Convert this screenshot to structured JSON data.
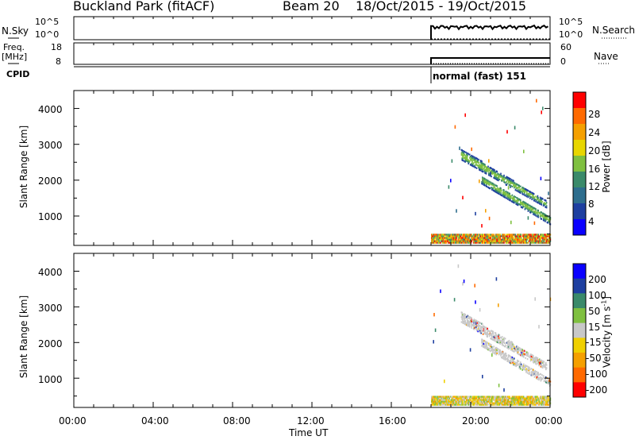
{
  "header": {
    "station": "Buckland Park (fitACF)",
    "beam": "Beam 20",
    "dates": "18/Oct/2015 - 19/Oct/2015"
  },
  "summary_panels": {
    "nsky_label": "N.Sky",
    "nsky_ticks": [
      "10^5",
      "10^0"
    ],
    "nsearch_label": "N.Search",
    "nsearch_ticks": [
      "10^5",
      "10^0"
    ],
    "freq_label": "Freq.",
    "freq_unit": "[MHz]",
    "freq_ticks": [
      "18",
      "8"
    ],
    "nave_label": "Nave",
    "nave_ticks": [
      "60",
      "0"
    ],
    "cpid_label": "CPID",
    "cpid_value": "normal (fast) 151"
  },
  "colors": {
    "power_scale": [
      "#0a00ff",
      "#1e3fa0",
      "#2e6e8e",
      "#3a8a6a",
      "#7fc040",
      "#e8d600",
      "#f5a000",
      "#ff6a00",
      "#ff0000"
    ],
    "velocity_scale": [
      "#ff0000",
      "#ff6a00",
      "#f5a000",
      "#f0d000",
      "#c8c8c8",
      "#7fc040",
      "#3a8a6a",
      "#1e3fa0",
      "#0a00ff"
    ]
  },
  "chart_data": [
    {
      "type": "heatmap",
      "title": "",
      "quantity": "Power",
      "xlabel": "",
      "ylabel": "Slant Range [km]",
      "ylim": [
        180,
        4500
      ],
      "yticks": [
        "4000",
        "3000",
        "2000",
        "1000"
      ],
      "colorbar_label": "Power [dB]",
      "colorbar_ticks": [
        "28",
        "24",
        "20",
        "16",
        "12",
        "8",
        "4"
      ],
      "data_time_range_ut": [
        "18:00",
        "24:00"
      ],
      "features": [
        {
          "name": "near-range scatter",
          "range_km": [
            250,
            500
          ],
          "time_ut": [
            18.0,
            24.0
          ]
        },
        {
          "name": "upper band",
          "range_km_start": 2700,
          "range_km_end": 1300,
          "time_ut": [
            19.5,
            23.8
          ]
        },
        {
          "name": "lower band",
          "range_km_start": 2000,
          "range_km_end": 850,
          "time_ut": [
            20.5,
            24.0
          ]
        }
      ]
    },
    {
      "type": "heatmap",
      "title": "",
      "quantity": "Velocity",
      "xlabel": "Time UT",
      "ylabel": "Slant Range [km]",
      "ylim": [
        180,
        4500
      ],
      "yticks": [
        "4000",
        "3000",
        "2000",
        "1000"
      ],
      "xticks": [
        "00:00",
        "04:00",
        "08:00",
        "12:00",
        "16:00",
        "20:00",
        "00:00"
      ],
      "colorbar_label": "Velocity [m s",
      "colorbar_label_sup": "-1",
      "colorbar_ticks": [
        "200",
        "100",
        "50",
        "15",
        "-15",
        "-50",
        "-100",
        "-200"
      ],
      "data_time_range_ut": [
        "18:00",
        "24:00"
      ],
      "features": [
        {
          "name": "near-range scatter",
          "range_km": [
            250,
            500
          ],
          "time_ut": [
            18.0,
            24.0
          ]
        },
        {
          "name": "upper band",
          "range_km_start": 2700,
          "range_km_end": 1300,
          "time_ut": [
            19.5,
            23.8
          ]
        },
        {
          "name": "lower band",
          "range_km_start": 2000,
          "range_km_end": 850,
          "time_ut": [
            20.5,
            24.0
          ]
        }
      ]
    }
  ]
}
